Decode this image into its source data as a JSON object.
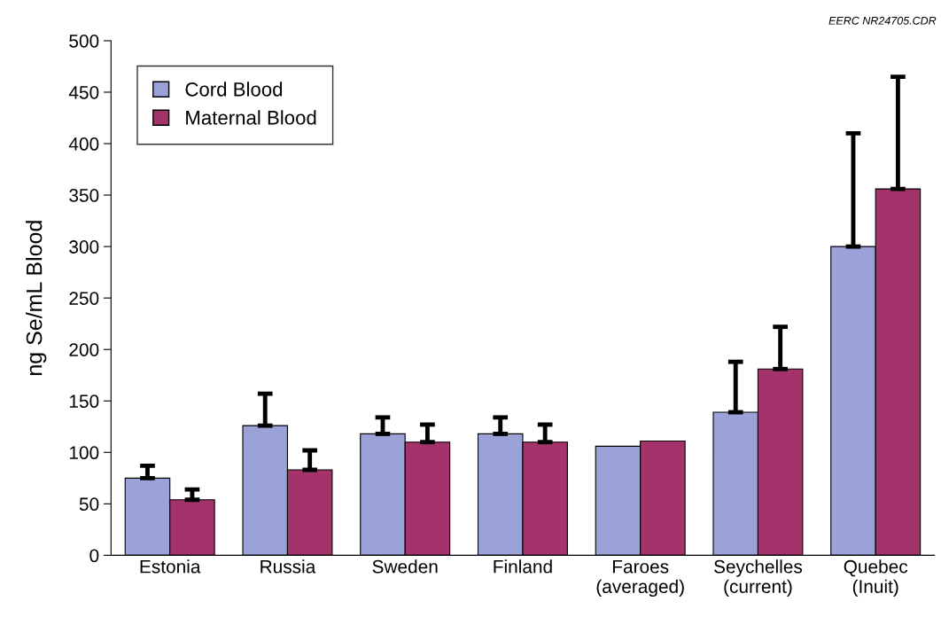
{
  "chart_data": {
    "type": "bar",
    "ylabel": "ng Se/mL Blood",
    "categories": [
      "Estonia",
      "Russia",
      "Sweden",
      "Finland",
      "Faroes\n(averaged)",
      "Seychelles\n(current)",
      "Quebec\n(Inuit)"
    ],
    "series": [
      {
        "name": "Cord Blood",
        "color": "#9aa2d8",
        "values": [
          75,
          126,
          118,
          118,
          106,
          139,
          300
        ],
        "errors": [
          [
            75,
            87
          ],
          [
            126,
            157
          ],
          [
            118,
            134
          ],
          [
            118,
            134
          ],
          null,
          [
            139,
            188
          ],
          [
            300,
            410
          ]
        ]
      },
      {
        "name": "Maternal Blood",
        "color": "#a3336a",
        "values": [
          54,
          83,
          110,
          110,
          111,
          181,
          356
        ],
        "errors": [
          [
            54,
            64
          ],
          [
            83,
            102
          ],
          [
            110,
            127
          ],
          [
            110,
            127
          ],
          null,
          [
            181,
            222
          ],
          [
            356,
            465
          ]
        ]
      }
    ],
    "ylim": [
      0,
      500
    ],
    "yticks": [
      0,
      50,
      100,
      150,
      200,
      250,
      300,
      350,
      400,
      450,
      500
    ],
    "grid": false,
    "legend": "top left",
    "annotations": [
      "EERC NR24705.CDR"
    ]
  }
}
